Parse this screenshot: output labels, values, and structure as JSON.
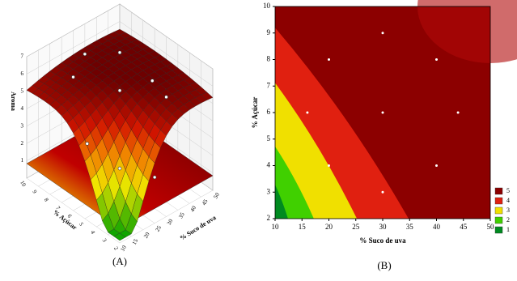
{
  "chart_data": [
    {
      "type": "surface3d",
      "label": "(A)",
      "xlabel": "% Suco de uva",
      "ylabel": "% Açúcar",
      "zlabel": "Aroma",
      "xlim": [
        10,
        50
      ],
      "ylim": [
        2,
        10
      ],
      "zlim": [
        0,
        7
      ],
      "xticks": [
        10,
        15,
        20,
        25,
        30,
        35,
        40,
        45,
        50
      ],
      "yticks": [
        2,
        3,
        4,
        5,
        6,
        7,
        8,
        9,
        10
      ],
      "zticks": [
        1,
        2,
        3,
        4,
        5,
        6,
        7
      ],
      "x": [
        16,
        20,
        20,
        30,
        30,
        30,
        40,
        40,
        44
      ],
      "y": [
        6,
        8,
        4,
        9,
        6,
        3,
        8,
        4,
        6
      ],
      "values": [
        3.4,
        6,
        2.6,
        6.1,
        5.4,
        1.8,
        5.9,
        5.2,
        4.9
      ],
      "point_color": "#ffffff"
    },
    {
      "type": "contour",
      "label": "(B)",
      "xlabel": "% Suco de uva",
      "ylabel": "% Açúcar",
      "xlim": [
        10,
        50
      ],
      "ylim": [
        2,
        10
      ],
      "xticks": [
        10,
        15,
        20,
        25,
        30,
        35,
        40,
        45,
        50
      ],
      "yticks": [
        2,
        3,
        4,
        5,
        6,
        7,
        8,
        9,
        10
      ],
      "x": [
        16,
        20,
        20,
        30,
        30,
        30,
        40,
        40,
        44
      ],
      "values": [
        6,
        8,
        4,
        9,
        6,
        3,
        8,
        4,
        6
      ],
      "levels": [
        5,
        4,
        3,
        2,
        1
      ],
      "level_colors": [
        "#8c0000",
        "#e02010",
        "#f0e000",
        "#40d000",
        "#008a20"
      ],
      "point_color": "#ffffff"
    }
  ]
}
